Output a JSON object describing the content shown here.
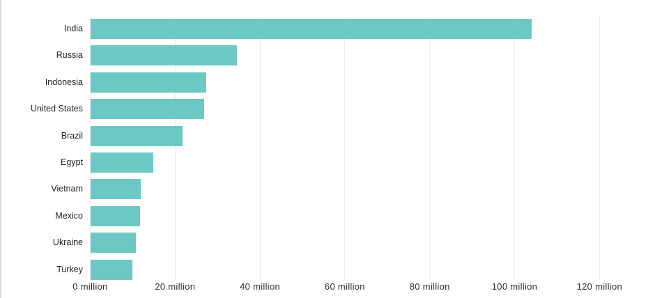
{
  "chart_data": {
    "type": "bar",
    "orientation": "horizontal",
    "title": "",
    "xlabel": "",
    "ylabel": "",
    "categories": [
      "India",
      "Russia",
      "Indonesia",
      "United States",
      "Brazil",
      "Egypt",
      "Vietnam",
      "Mexico",
      "Ukraine",
      "Turkey"
    ],
    "values": [
      104,
      34.5,
      27.3,
      26.8,
      21.8,
      14.9,
      11.9,
      11.7,
      10.8,
      9.9
    ],
    "value_unit": "million",
    "xlim": [
      0,
      130
    ],
    "x_ticks": [
      0,
      20,
      40,
      60,
      80,
      100,
      120
    ],
    "x_tick_labels": [
      "0 million",
      "20 million",
      "40 million",
      "60 million",
      "80 million",
      "100 million",
      "120 million"
    ],
    "grid": "vertical-only",
    "legend": "none",
    "colors": {
      "bar": "#6cc8c3",
      "gridline": "#ececec",
      "category_label": "#1f1f1f",
      "tick_label": "#2e2e2e",
      "background": "#ffffff",
      "frame_edge": "#dcdcdc"
    }
  }
}
